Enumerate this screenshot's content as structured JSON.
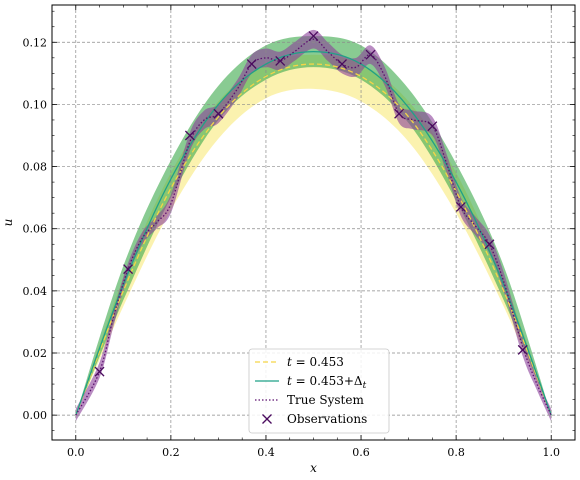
{
  "chart_data": {
    "type": "line",
    "xlabel": "x",
    "ylabel": "u",
    "xlim": [
      -0.05,
      1.05
    ],
    "ylim": [
      -0.008,
      0.132
    ],
    "grid": true,
    "legend_position": "lower center",
    "x_ticks": [
      0.0,
      0.2,
      0.4,
      0.6,
      0.8,
      1.0
    ],
    "x_tick_labels": [
      "0.0",
      "0.2",
      "0.4",
      "0.6",
      "0.8",
      "1.0"
    ],
    "y_ticks": [
      0.0,
      0.02,
      0.04,
      0.06,
      0.08,
      0.1,
      0.12
    ],
    "y_tick_labels": [
      "0.00",
      "0.02",
      "0.04",
      "0.06",
      "0.08",
      "0.10",
      "0.12"
    ],
    "series": [
      {
        "name": "t = 0.453",
        "label_main": "t",
        "label_rest": " = 0.453",
        "style": "dashed",
        "color": "#f5d547",
        "band_color": "#f7e76e",
        "x": [
          0.0,
          0.1,
          0.2,
          0.3,
          0.4,
          0.5,
          0.6,
          0.7,
          0.8,
          0.9,
          1.0
        ],
        "mean": [
          0.0,
          0.04,
          0.073,
          0.096,
          0.109,
          0.113,
          0.109,
          0.096,
          0.072,
          0.04,
          0.0
        ],
        "lower": [
          0.0,
          0.035,
          0.066,
          0.089,
          0.102,
          0.105,
          0.101,
          0.088,
          0.065,
          0.035,
          0.0
        ],
        "upper": [
          0.0,
          0.044,
          0.078,
          0.101,
          0.113,
          0.116,
          0.113,
          0.101,
          0.078,
          0.044,
          0.0
        ]
      },
      {
        "name": "t = 0.453+Δt",
        "label_main": "t",
        "label_rest": " = 0.453+Δ",
        "label_sub": "t",
        "style": "solid",
        "color": "#1fa187",
        "band_color": "#3aa84a",
        "x": [
          0.0,
          0.1,
          0.2,
          0.3,
          0.4,
          0.5,
          0.6,
          0.7,
          0.8,
          0.9,
          1.0
        ],
        "mean": [
          0.0,
          0.042,
          0.076,
          0.1,
          0.113,
          0.117,
          0.113,
          0.099,
          0.075,
          0.042,
          0.0
        ],
        "lower": [
          0.0,
          0.037,
          0.07,
          0.095,
          0.108,
          0.112,
          0.108,
          0.094,
          0.069,
          0.037,
          0.0
        ],
        "upper": [
          0.0,
          0.048,
          0.082,
          0.106,
          0.119,
          0.122,
          0.119,
          0.105,
          0.081,
          0.048,
          0.0
        ]
      },
      {
        "name": "True System",
        "style": "dotted",
        "color": "#5b0f6e",
        "band_color": "#8a3f99",
        "x": [
          0.0,
          0.05,
          0.08,
          0.11,
          0.14,
          0.17,
          0.2,
          0.24,
          0.27,
          0.3,
          0.34,
          0.37,
          0.4,
          0.43,
          0.46,
          0.5,
          0.53,
          0.56,
          0.59,
          0.62,
          0.65,
          0.68,
          0.71,
          0.75,
          0.78,
          0.81,
          0.84,
          0.87,
          0.9,
          0.94,
          0.97,
          1.0
        ],
        "mean": [
          0.0,
          0.014,
          0.032,
          0.047,
          0.057,
          0.062,
          0.068,
          0.088,
          0.095,
          0.097,
          0.105,
          0.113,
          0.115,
          0.114,
          0.117,
          0.121,
          0.117,
          0.113,
          0.112,
          0.116,
          0.109,
          0.097,
          0.095,
          0.093,
          0.081,
          0.067,
          0.061,
          0.055,
          0.043,
          0.022,
          0.01,
          0.0
        ],
        "lower": [
          -0.002,
          0.012,
          0.029,
          0.045,
          0.055,
          0.06,
          0.065,
          0.085,
          0.092,
          0.094,
          0.102,
          0.11,
          0.112,
          0.111,
          0.114,
          0.118,
          0.114,
          0.11,
          0.109,
          0.113,
          0.106,
          0.094,
          0.092,
          0.09,
          0.078,
          0.064,
          0.058,
          0.052,
          0.04,
          0.019,
          0.008,
          -0.002
        ],
        "upper": [
          0.002,
          0.017,
          0.034,
          0.049,
          0.059,
          0.064,
          0.071,
          0.091,
          0.098,
          0.1,
          0.108,
          0.116,
          0.118,
          0.117,
          0.12,
          0.124,
          0.12,
          0.116,
          0.115,
          0.119,
          0.112,
          0.1,
          0.098,
          0.096,
          0.084,
          0.07,
          0.064,
          0.058,
          0.046,
          0.025,
          0.012,
          0.002
        ]
      }
    ],
    "observations": {
      "name": "Observations",
      "marker": "x",
      "color": "#4a0b5e",
      "x": [
        0.05,
        0.11,
        0.24,
        0.3,
        0.37,
        0.43,
        0.5,
        0.56,
        0.62,
        0.68,
        0.75,
        0.81,
        0.87,
        0.94
      ],
      "y": [
        0.014,
        0.047,
        0.09,
        0.097,
        0.113,
        0.114,
        0.122,
        0.113,
        0.116,
        0.097,
        0.093,
        0.067,
        0.055,
        0.021
      ]
    }
  }
}
